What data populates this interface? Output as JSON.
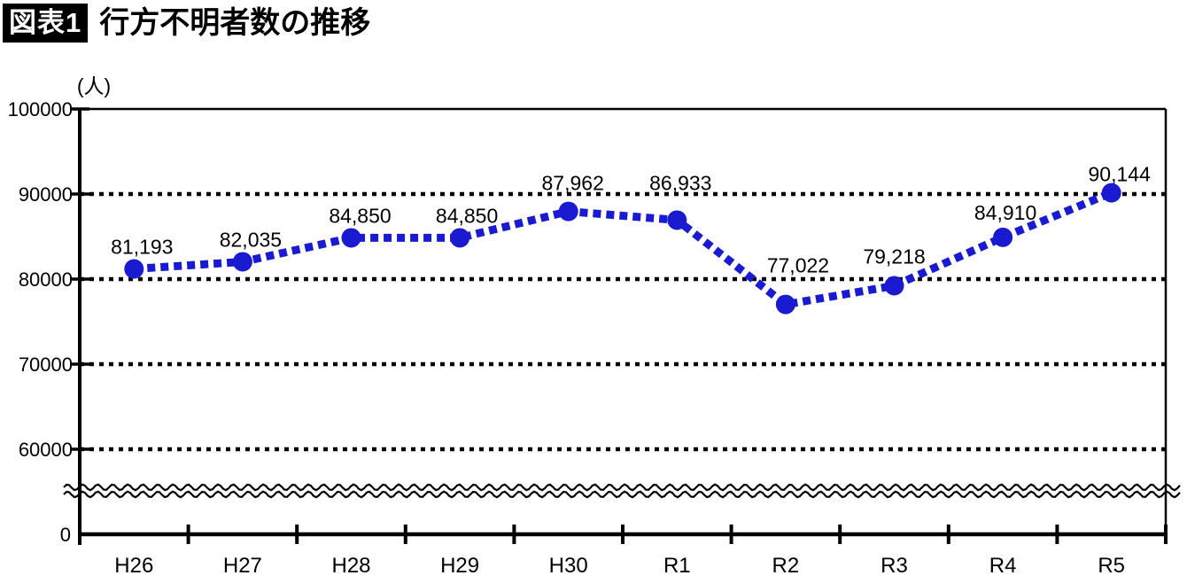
{
  "header": {
    "badge": "図表1",
    "title": "行方不明者数の推移"
  },
  "chart_data": {
    "type": "line",
    "title": "行方不明者数の推移",
    "unit": "(人)",
    "categories": [
      "H26",
      "H27",
      "H28",
      "H29",
      "H30",
      "R1",
      "R2",
      "R3",
      "R4",
      "R5"
    ],
    "values": [
      81193,
      82035,
      84850,
      84850,
      87962,
      86933,
      77022,
      79218,
      84910,
      90144
    ],
    "value_labels": [
      "81,193",
      "82,035",
      "84,850",
      "84,850",
      "87,962",
      "86,933",
      "77,022",
      "79,218",
      "84,910",
      "90,144"
    ],
    "y_ticks": [
      100000,
      90000,
      80000,
      70000,
      60000
    ],
    "y_tick_labels": [
      "100000",
      "90000",
      "80000",
      "70000",
      "60000"
    ],
    "origin_label": "0",
    "ylim": [
      0,
      100000
    ],
    "axis_break": true,
    "grid": "horizontal-dotted",
    "legend": "none",
    "line_style": "dashed",
    "marker": "circle",
    "line_color": "#1a1ad1",
    "axis_color": "#000000",
    "label_offsets": {
      "dx": [
        9,
        9,
        10,
        8,
        5,
        4,
        14,
        0,
        3,
        9
      ],
      "dy": [
        -17,
        -17,
        -17,
        -17,
        -24,
        -34,
        -36,
        -25,
        -20,
        -13
      ]
    }
  }
}
